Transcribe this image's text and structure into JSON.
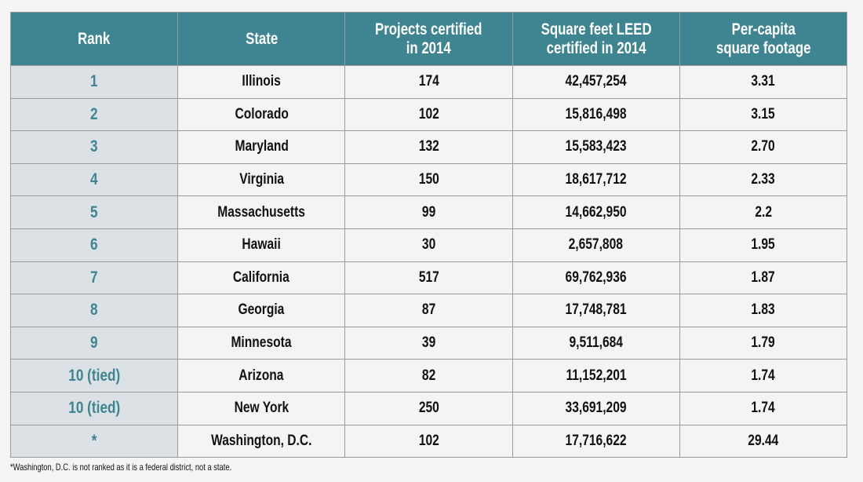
{
  "headers": [
    "Rank",
    "State",
    "Projects certified in 2014",
    "Square feet LEED certified in 2014",
    "Per-capita square footage"
  ],
  "header_lines": [
    [
      "Rank"
    ],
    [
      "State"
    ],
    [
      "Projects certified",
      "in 2014"
    ],
    [
      "Square feet LEED",
      "certified in 2014"
    ],
    [
      "Per-capita",
      "square footage"
    ]
  ],
  "rows": [
    [
      "1",
      "Illinois",
      "174",
      "42,457,254",
      "3.31"
    ],
    [
      "2",
      "Colorado",
      "102",
      "15,816,498",
      "3.15"
    ],
    [
      "3",
      "Maryland",
      "132",
      "15,583,423",
      "2.70"
    ],
    [
      "4",
      "Virginia",
      "150",
      "18,617,712",
      "2.33"
    ],
    [
      "5",
      "Massachusetts",
      "99",
      "14,662,950",
      "2.2"
    ],
    [
      "6",
      "Hawaii",
      "30",
      "2,657,808",
      "1.95"
    ],
    [
      "7",
      "California",
      "517",
      "69,762,936",
      "1.87"
    ],
    [
      "8",
      "Georgia",
      "87",
      "17,748,781",
      "1.83"
    ],
    [
      "9",
      "Minnesota",
      "39",
      "9,511,684",
      "1.79"
    ],
    [
      "10 (tied)",
      "Arizona",
      "82",
      "11,152,201",
      "1.74"
    ],
    [
      "10 (tied)",
      "New York",
      "250",
      "33,691,209",
      "1.74"
    ],
    [
      "*",
      "Washington, D.C.",
      "102",
      "17,716,622",
      "29.44"
    ]
  ],
  "footnote": "*Washington, D.C. is not ranked as it is a federal district, not a state.",
  "colors": {
    "header_bg": "#3f8491",
    "rank_bg": "#dce1e6",
    "rank_text": "#3f8491"
  }
}
